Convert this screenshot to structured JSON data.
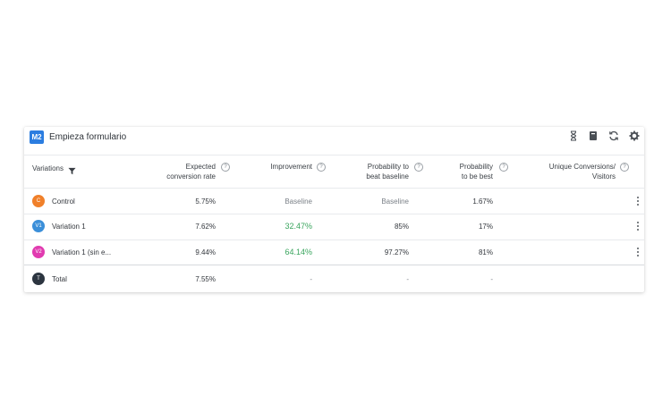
{
  "header": {
    "badge": "M2",
    "title": "Empieza formulario",
    "icons": [
      "hourglass-icon",
      "notebook-icon",
      "refresh-icon",
      "gear-icon"
    ]
  },
  "columns": {
    "variations": "Variations",
    "expected_1": "Expected",
    "expected_2": "conversion rate",
    "improvement": "Improvement",
    "prob_beat_1": "Probability to",
    "prob_beat_2": "beat baseline",
    "prob_best_1": "Probability",
    "prob_best_2": "to be best",
    "unique_1": "Unique Conversions/",
    "unique_2": "Visitors",
    "help": "?"
  },
  "rows": [
    {
      "avatar": "C",
      "color": "#f0802a",
      "name": "Control",
      "expected": "5.75%",
      "improvement": "Baseline",
      "prob_beat": "Baseline",
      "prob_best": "1.67%"
    },
    {
      "avatar": "V1",
      "color": "#3b8fd9",
      "name": "Variation 1",
      "expected": "7.62%",
      "improvement": "32.47%",
      "prob_beat": "85%",
      "prob_best": "17%"
    },
    {
      "avatar": "V2",
      "color": "#e13bb0",
      "name": "Variation 1 (sin e...",
      "expected": "9.44%",
      "improvement": "64.14%",
      "prob_beat": "97.27%",
      "prob_best": "81%"
    }
  ],
  "total": {
    "avatar": "T",
    "color": "#2c3540",
    "name": "Total",
    "expected": "7.55%",
    "improvement": "-",
    "prob_beat": "-",
    "prob_best": "-"
  }
}
